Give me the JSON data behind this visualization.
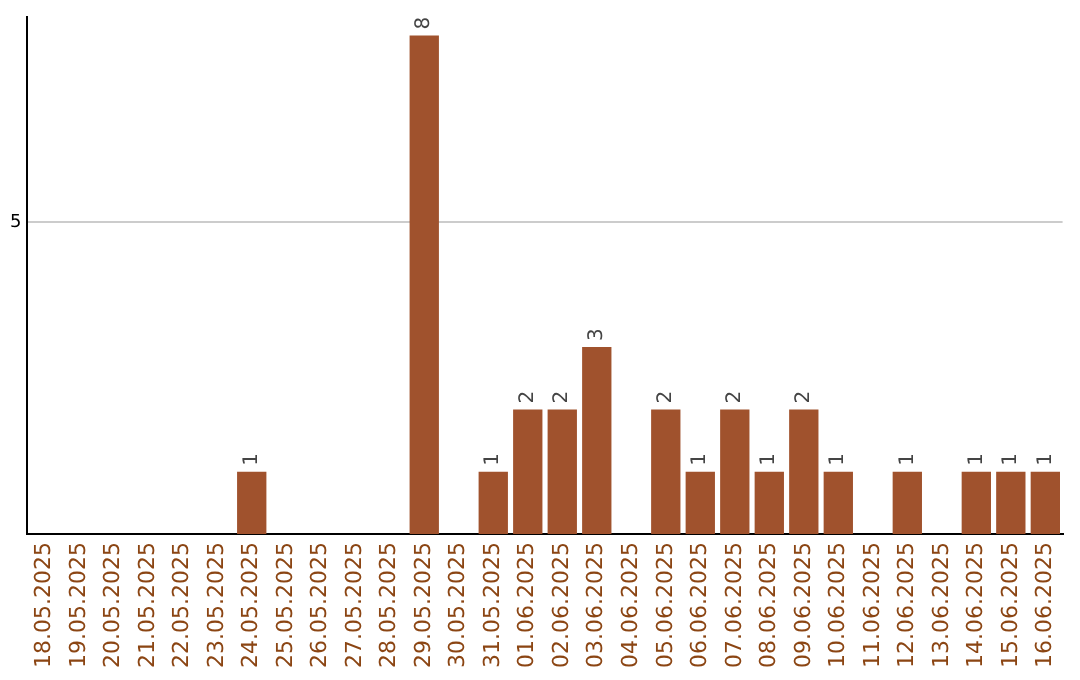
{
  "chart_data": {
    "type": "bar",
    "categories": [
      "18.05.2025",
      "19.05.2025",
      "20.05.2025",
      "21.05.2025",
      "22.05.2025",
      "23.05.2025",
      "24.05.2025",
      "25.05.2025",
      "26.05.2025",
      "27.05.2025",
      "28.05.2025",
      "29.05.2025",
      "30.05.2025",
      "31.05.2025",
      "01.06.2025",
      "02.06.2025",
      "03.06.2025",
      "04.06.2025",
      "05.06.2025",
      "06.06.2025",
      "07.06.2025",
      "08.06.2025",
      "09.06.2025",
      "10.06.2025",
      "11.06.2025",
      "12.06.2025",
      "13.06.2025",
      "14.06.2025",
      "15.06.2025",
      "16.06.2025"
    ],
    "values": [
      0,
      0,
      0,
      0,
      0,
      0,
      1,
      0,
      0,
      0,
      0,
      8,
      0,
      1,
      2,
      2,
      3,
      0,
      2,
      1,
      2,
      1,
      2,
      1,
      0,
      1,
      0,
      1,
      1,
      1
    ],
    "value_labels": [
      null,
      null,
      null,
      null,
      null,
      null,
      "1",
      null,
      null,
      null,
      null,
      "8",
      null,
      "1",
      "2",
      "2",
      "3",
      null,
      "2",
      "1",
      "2",
      "1",
      "2",
      "1",
      null,
      "1",
      null,
      "1",
      "1",
      "1"
    ],
    "color": "#a0522d",
    "ylim": [
      0,
      8.3
    ],
    "yticks": [
      5
    ],
    "grid": "y",
    "legend": false
  }
}
